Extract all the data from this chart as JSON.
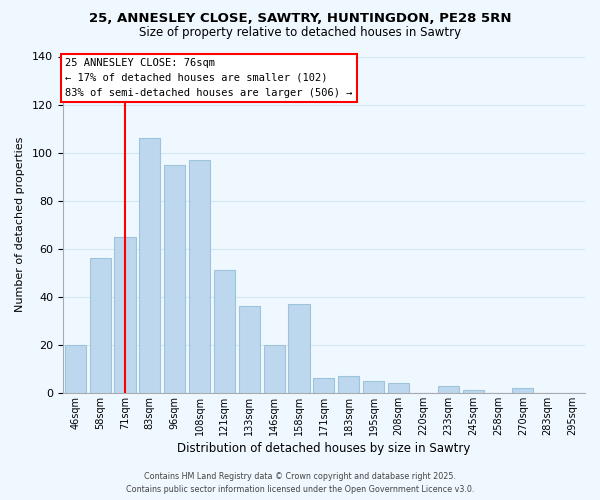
{
  "title_line1": "25, ANNESLEY CLOSE, SAWTRY, HUNTINGDON, PE28 5RN",
  "title_line2": "Size of property relative to detached houses in Sawtry",
  "xlabel": "Distribution of detached houses by size in Sawtry",
  "ylabel": "Number of detached properties",
  "bar_labels": [
    "46sqm",
    "58sqm",
    "71sqm",
    "83sqm",
    "96sqm",
    "108sqm",
    "121sqm",
    "133sqm",
    "146sqm",
    "158sqm",
    "171sqm",
    "183sqm",
    "195sqm",
    "208sqm",
    "220sqm",
    "233sqm",
    "245sqm",
    "258sqm",
    "270sqm",
    "283sqm",
    "295sqm"
  ],
  "bar_values": [
    20,
    56,
    65,
    106,
    95,
    97,
    51,
    36,
    20,
    37,
    6,
    7,
    5,
    4,
    0,
    3,
    1,
    0,
    2,
    0,
    0
  ],
  "bar_color": "#bdd7ee",
  "bar_edge_color": "#9ec4dc",
  "vline_x_idx": 2,
  "vline_color": "red",
  "ylim": [
    0,
    140
  ],
  "yticks": [
    0,
    20,
    40,
    60,
    80,
    100,
    120,
    140
  ],
  "annotation_title": "25 ANNESLEY CLOSE: 76sqm",
  "annotation_line1": "← 17% of detached houses are smaller (102)",
  "annotation_line2": "83% of semi-detached houses are larger (506) →",
  "footer_line1": "Contains HM Land Registry data © Crown copyright and database right 2025.",
  "footer_line2": "Contains public sector information licensed under the Open Government Licence v3.0.",
  "background_color": "#f0f8ff",
  "grid_color": "#d0e8f0"
}
